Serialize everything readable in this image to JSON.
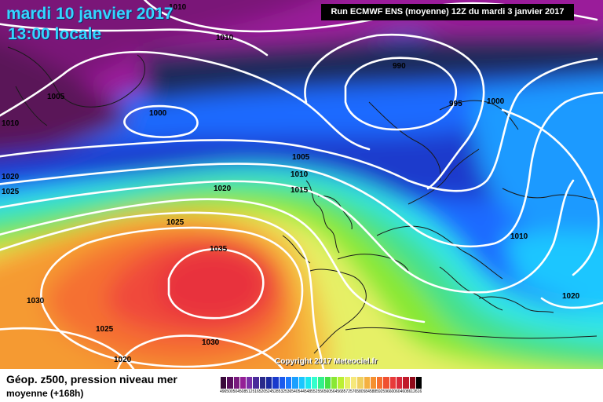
{
  "header": {
    "date": "mardi 10 janvier 2017",
    "time": "13:00 locale",
    "run": "Run ECMWF ENS (moyenne) 12Z du mardi 3 janvier 2017"
  },
  "copyright": "Copyright 2017 Meteociel.fr",
  "footer": {
    "title": "Géop. z500, pression niveau mer",
    "subtitle": "moyenne   (+168h)"
  },
  "isobar_labels": [
    {
      "name": "isobar-label-1010-top",
      "text": "1010"
    },
    {
      "name": "isobar-label-1010-greenland",
      "text": "1010"
    },
    {
      "name": "isobar-label-1005-west",
      "text": "1005"
    },
    {
      "name": "isobar-label-1010-edge",
      "text": "1010"
    },
    {
      "name": "isobar-label-1000-low",
      "text": "1000"
    },
    {
      "name": "isobar-label-990",
      "text": "990"
    },
    {
      "name": "isobar-label-995",
      "text": "995"
    },
    {
      "name": "isobar-label-1000-east",
      "text": "1000"
    },
    {
      "name": "isobar-label-1005-mid",
      "text": "1005"
    },
    {
      "name": "isobar-label-1010-mid",
      "text": "1010"
    },
    {
      "name": "isobar-label-1015",
      "text": "1015"
    },
    {
      "name": "isobar-label-1020-west",
      "text": "1020"
    },
    {
      "name": "isobar-label-1025-west",
      "text": "1025"
    },
    {
      "name": "isobar-label-1020-mid",
      "text": "1020"
    },
    {
      "name": "isobar-label-1025-mid",
      "text": "1025"
    },
    {
      "name": "isobar-label-1035",
      "text": "1035"
    },
    {
      "name": "isobar-label-1030-west",
      "text": "1030"
    },
    {
      "name": "isobar-label-1025-south",
      "text": "1025"
    },
    {
      "name": "isobar-label-1030-south",
      "text": "1030"
    },
    {
      "name": "isobar-label-1020-south",
      "text": "1020"
    },
    {
      "name": "isobar-label-1010-east",
      "text": "1010"
    },
    {
      "name": "isobar-label-1020-east",
      "text": "1020"
    }
  ],
  "scale": {
    "values": [
      "496",
      "500",
      "504",
      "508",
      "512",
      "516",
      "520",
      "524",
      "528",
      "532",
      "536",
      "540",
      "544",
      "548",
      "552",
      "556",
      "560",
      "564",
      "568",
      "572",
      "576",
      "580",
      "584",
      "588",
      "592",
      "596",
      "600",
      "604",
      "608",
      "612",
      "616"
    ],
    "colors": [
      "#3a0a3a",
      "#5a0f5e",
      "#7a1a7e",
      "#941f96",
      "#7a2fa8",
      "#4a2a9a",
      "#2a2a8a",
      "#1a2aa0",
      "#1a3acc",
      "#1a5aee",
      "#1a7aff",
      "#1aa0ff",
      "#1ac6ff",
      "#1ae6f0",
      "#33ffcc",
      "#33f08a",
      "#44e044",
      "#88e833",
      "#bbf033",
      "#e6f066",
      "#f6e87a",
      "#f0d060",
      "#f5b040",
      "#f59030",
      "#f57030",
      "#f05030",
      "#e83a3a",
      "#d82a3a",
      "#c01a2a",
      "#900a1a",
      "#000000"
    ]
  }
}
